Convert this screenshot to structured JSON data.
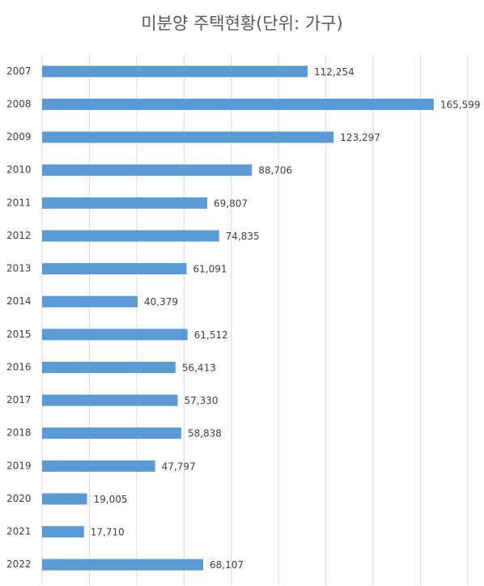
{
  "chart_data": {
    "type": "barh",
    "title": "미분양 주택현황(단위: 가구)",
    "categories": [
      "2007",
      "2008",
      "2009",
      "2010",
      "2011",
      "2012",
      "2013",
      "2014",
      "2015",
      "2016",
      "2017",
      "2018",
      "2019",
      "2020",
      "2021",
      "2022"
    ],
    "values": [
      112254,
      165599,
      123297,
      88706,
      69807,
      74835,
      61091,
      40379,
      61512,
      56413,
      57330,
      58838,
      47797,
      19005,
      17710,
      68107
    ],
    "value_labels": [
      "112,254",
      "165,599",
      "123,297",
      "88,706",
      "69,807",
      "74,835",
      "61,091",
      "40,379",
      "61,512",
      "56,413",
      "57,330",
      "58,838",
      "47,797",
      "19,005",
      "17,710",
      "68,107"
    ],
    "color": "#5b9bd5",
    "xlim": [
      0,
      180000
    ],
    "xticks": [
      0,
      20000,
      40000,
      60000,
      80000,
      100000,
      120000,
      140000,
      160000,
      180000
    ],
    "grid": true
  }
}
